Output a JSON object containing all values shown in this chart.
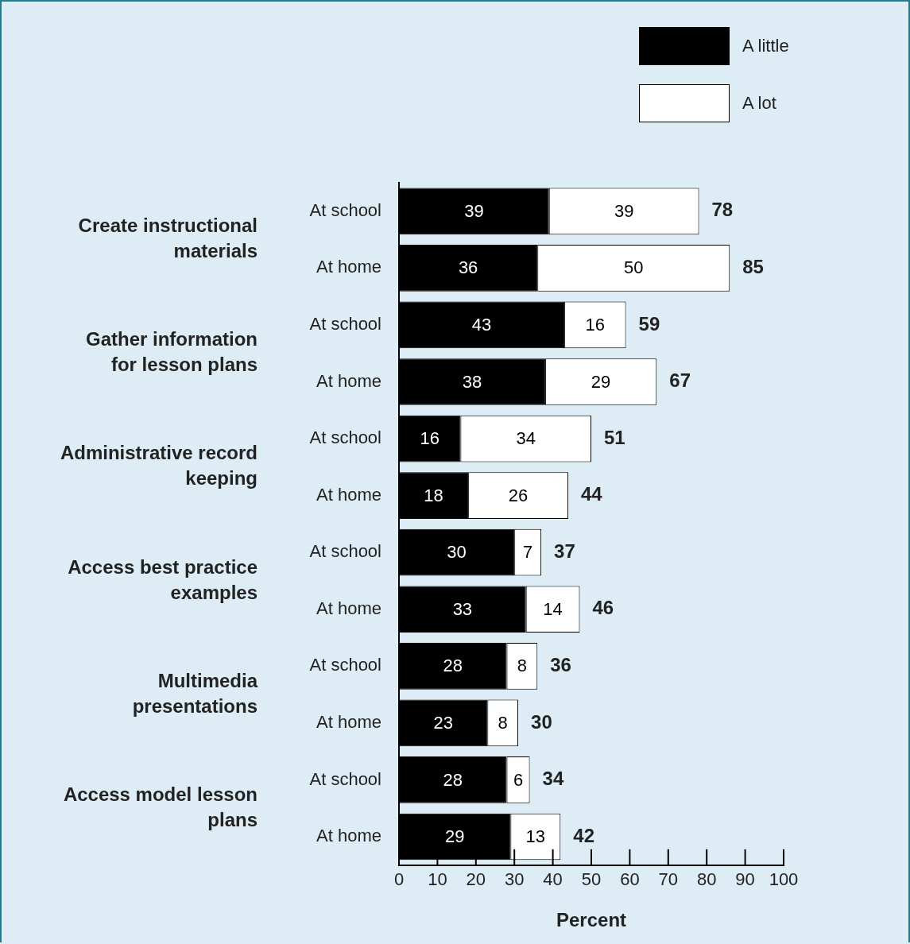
{
  "chart_data": {
    "type": "bar",
    "orientation": "horizontal",
    "stacked": true,
    "xlabel": "Percent",
    "categories": [
      "At school",
      "At home",
      "At school",
      "At home",
      "At school",
      "At home",
      "At school",
      "At home",
      "At school",
      "At home",
      "At school",
      "At home"
    ],
    "series": [
      {
        "name": "A little",
        "color": "#000000",
        "values": [
          39,
          36,
          43,
          38,
          16,
          18,
          30,
          33,
          28,
          23,
          28,
          29
        ]
      },
      {
        "name": "A lot",
        "color": "#ffffff",
        "values": [
          39,
          50,
          16,
          29,
          34,
          26,
          7,
          14,
          8,
          8,
          6,
          13
        ]
      }
    ],
    "totals": [
      "78",
      "85",
      "59",
      "67",
      "51",
      "44",
      "37",
      "46",
      "36",
      "30",
      "34",
      "42"
    ],
    "annotations": [
      "Create instructional materials",
      "Gather information for lesson plans",
      "Administrative record keeping",
      "Access best practice examples",
      "Multimedia presentations",
      "Access model lesson plans"
    ],
    "xlim": [
      0,
      100
    ],
    "xticks": [
      0,
      10,
      20,
      30,
      40,
      50,
      60,
      70,
      80,
      90,
      100
    ],
    "data_labels": true,
    "legend": "top right",
    "grid": false
  }
}
